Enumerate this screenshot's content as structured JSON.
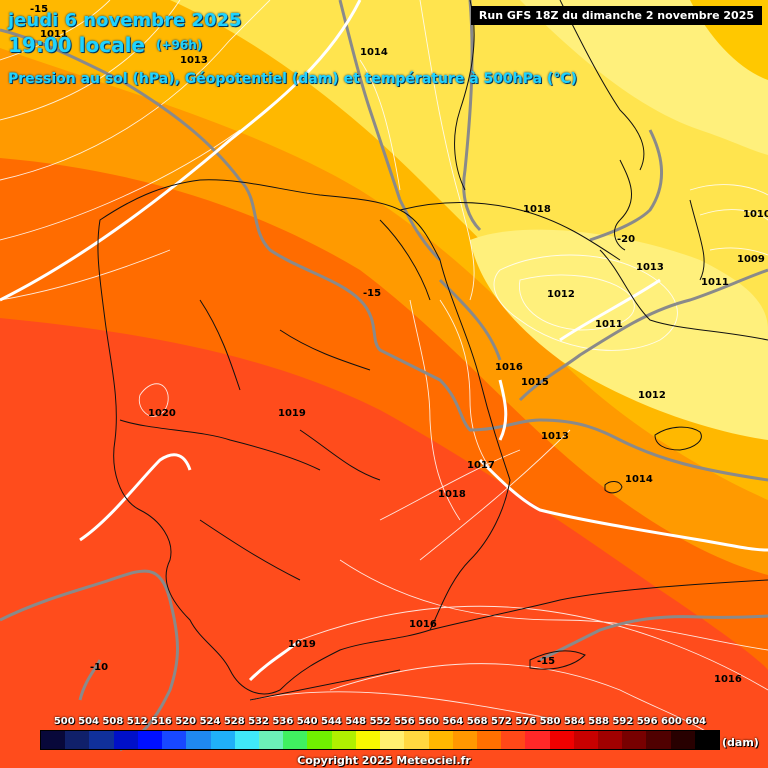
{
  "header": {
    "date_line": "jeudi 6 novembre 2025",
    "time_line": "19:00 locale",
    "lead_time": "(+96h)",
    "description": "Pression au sol (hPa), Géopotentiel (dam) et température à 500hPa (°C)",
    "run_info": "Run GFS 18Z du dimanche 2 novembre 2025"
  },
  "pressure_labels": [
    "1011",
    "1013",
    "1014",
    "1018",
    "1010",
    "1009",
    "1013",
    "1011",
    "1012",
    "1011",
    "1016",
    "1015",
    "1013",
    "1012",
    "1020",
    "1019",
    "1017",
    "1018",
    "1014",
    "1016",
    "1019",
    "1016"
  ],
  "temperature_labels": [
    "-15",
    "-20",
    "-15",
    "-15",
    "-10"
  ],
  "legend": {
    "values": [
      "500",
      "504",
      "508",
      "512",
      "516",
      "520",
      "524",
      "528",
      "532",
      "536",
      "540",
      "544",
      "548",
      "552",
      "556",
      "560",
      "564",
      "568",
      "572",
      "576",
      "580",
      "584",
      "588",
      "592",
      "596",
      "600",
      "604"
    ],
    "colors": [
      "#08083a",
      "#10206a",
      "#10309a",
      "#0010c8",
      "#0010ff",
      "#1848ff",
      "#1f88f0",
      "#20b0f8",
      "#40e8f8",
      "#6cf0b8",
      "#40f060",
      "#70f000",
      "#b0f000",
      "#f8f800",
      "#fff070",
      "#ffd840",
      "#ffb800",
      "#ff9800",
      "#ff7000",
      "#ff4818",
      "#ff2828",
      "#f00000",
      "#c80000",
      "#a00000",
      "#780000",
      "#500000",
      "#280000",
      "#000000"
    ],
    "unit": "(dam)"
  },
  "copyright": "Copyright 2025 Meteociel.fr"
}
